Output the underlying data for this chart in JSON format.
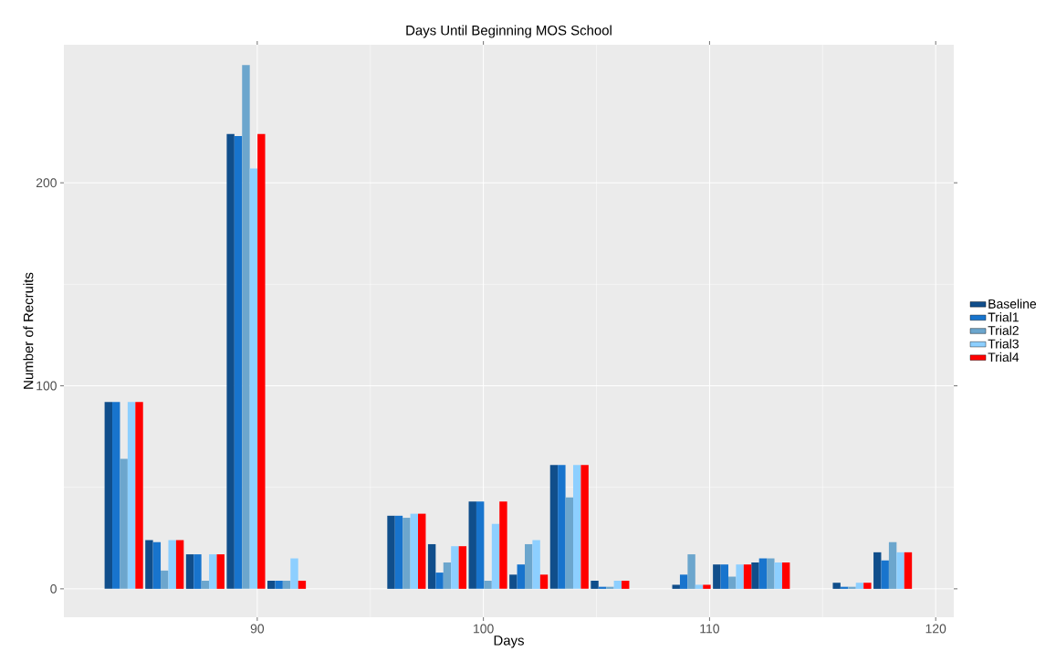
{
  "chart_data": {
    "type": "bar",
    "title": "Days Until Beginning MOS School",
    "xlabel": "Days",
    "ylabel": "Number of Recruits",
    "x": [
      84.1,
      85.9,
      87.7,
      89.5,
      91.3,
      96.6,
      98.4,
      100.2,
      102.0,
      103.8,
      105.6,
      109.2,
      111.0,
      112.7,
      116.3,
      118.1
    ],
    "series": [
      {
        "name": "Baseline",
        "color": "#104e8b",
        "values": [
          92,
          24,
          17,
          224,
          4,
          36,
          22,
          43,
          7,
          61,
          4,
          2,
          12,
          13,
          3,
          18
        ]
      },
      {
        "name": "Trial1",
        "color": "#1874cd",
        "values": [
          92,
          23,
          17,
          223,
          4,
          36,
          8,
          43,
          12,
          61,
          1,
          7,
          12,
          15,
          1,
          14
        ]
      },
      {
        "name": "Trial2",
        "color": "#6ca6cd",
        "values": [
          64,
          9,
          4,
          258,
          4,
          35,
          13,
          4,
          22,
          45,
          1,
          17,
          6,
          15,
          1,
          23
        ]
      },
      {
        "name": "Trial3",
        "color": "#8dcfff",
        "values": [
          92,
          24,
          17,
          207,
          15,
          37,
          21,
          32,
          24,
          61,
          4,
          2,
          12,
          13,
          3,
          18
        ]
      },
      {
        "name": "Trial4",
        "color": "#ff0000",
        "values": [
          92,
          24,
          17,
          224,
          4,
          37,
          21,
          43,
          7,
          61,
          4,
          2,
          12,
          13,
          3,
          18
        ]
      }
    ],
    "xlim": [
      81.45,
      120.8
    ],
    "ylim": [
      -14,
      268
    ],
    "xticks": [
      90,
      100,
      110,
      120
    ],
    "yticks": [
      0,
      100,
      200
    ],
    "grid": true,
    "legend": "right"
  }
}
